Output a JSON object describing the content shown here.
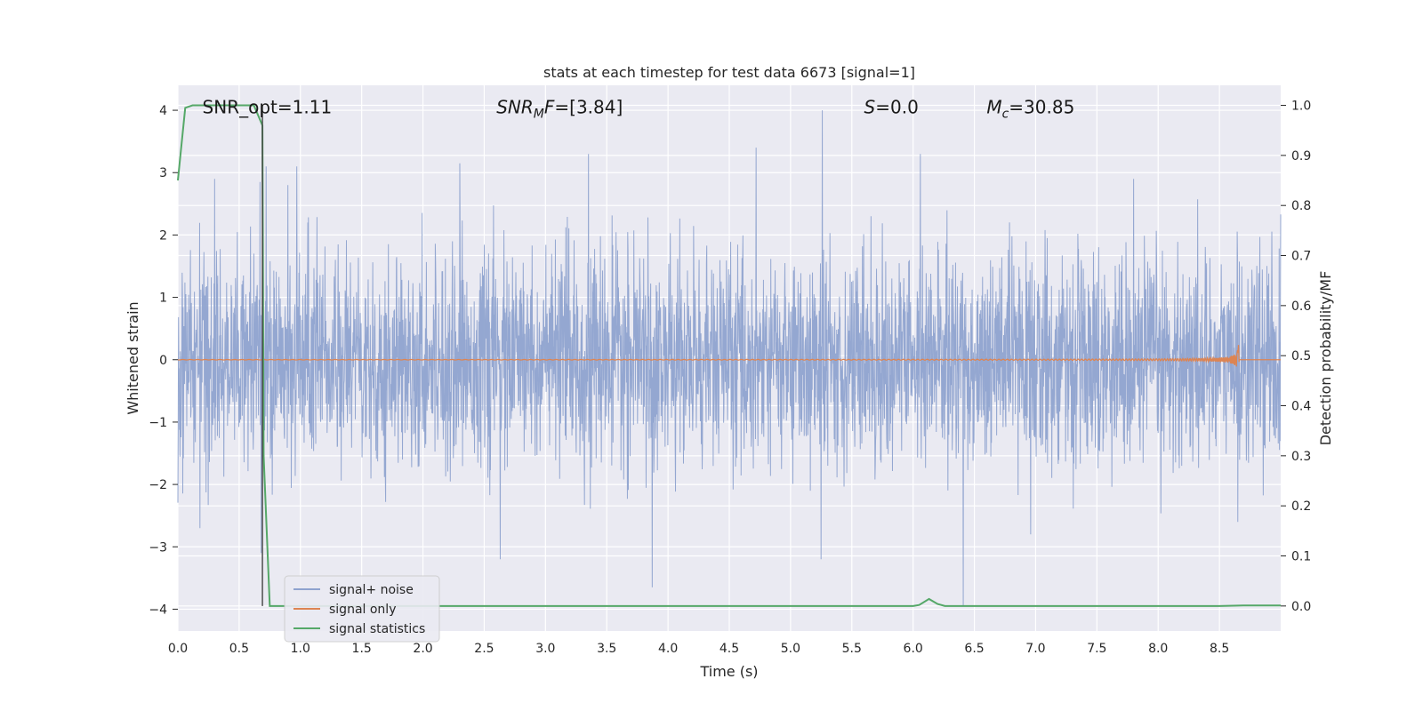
{
  "chart_data": {
    "type": "line",
    "title": "stats at each timestep for test data 6673 [signal=1]",
    "xlabel": "Time (s)",
    "ylabel": "Whitened strain",
    "y2label": "Detection probability/MF",
    "xlim": [
      0,
      9.0
    ],
    "ylim": [
      -4.35,
      4.4
    ],
    "y2lim": [
      -0.05,
      1.04
    ],
    "x_ticks": [
      "0.0",
      "0.5",
      "1.0",
      "1.5",
      "2.0",
      "2.5",
      "3.0",
      "3.5",
      "4.0",
      "4.5",
      "5.0",
      "5.5",
      "6.0",
      "6.5",
      "7.0",
      "7.5",
      "8.0",
      "8.5"
    ],
    "y_ticks": [
      "−4",
      "−3",
      "−2",
      "−1",
      "0",
      "1",
      "2",
      "3",
      "4"
    ],
    "y2_ticks": [
      "0.0",
      "0.1",
      "0.2",
      "0.3",
      "0.4",
      "0.5",
      "0.6",
      "0.7",
      "0.8",
      "0.9",
      "1.0"
    ],
    "annotations": [
      {
        "x": 0.2,
        "y": 4.05,
        "text": "SNR_opt=1.11"
      },
      {
        "x": 2.6,
        "y": 4.05,
        "text": "SNR",
        "sub": "M",
        "suffix": "F=[3.84]",
        "italic": true
      },
      {
        "x": 5.6,
        "y": 4.05,
        "text": "S",
        "suffix": "=0.0",
        "italic": true
      },
      {
        "x": 6.6,
        "y": 4.05,
        "text": "M",
        "sub": "c",
        "suffix": "=30.85",
        "italic": true
      }
    ],
    "vline_x": 0.69,
    "legend_position": "lower-left",
    "grid": true,
    "series": [
      {
        "name": "signal+ noise",
        "axis": "left",
        "color": "#8fa3cf",
        "description_stats": {
          "std": 0.82,
          "max": 4.0,
          "min": -3.9
        },
        "spikes_up": [
          [
            0.3,
            2.9
          ],
          [
            0.67,
            2.85
          ],
          [
            0.72,
            3.1
          ],
          [
            0.97,
            3.1
          ],
          [
            2.3,
            3.15
          ],
          [
            3.35,
            3.3
          ],
          [
            4.72,
            3.4
          ],
          [
            5.26,
            4.0
          ],
          [
            6.06,
            3.3
          ],
          [
            7.8,
            2.9
          ]
        ],
        "spikes_down": [
          [
            0.18,
            -2.7
          ],
          [
            0.68,
            -3.1
          ],
          [
            2.63,
            -3.2
          ],
          [
            3.87,
            -3.65
          ],
          [
            5.25,
            -3.2
          ],
          [
            6.41,
            -3.95
          ],
          [
            8.65,
            -2.6
          ]
        ]
      },
      {
        "name": "signal only",
        "axis": "left",
        "color": "#dd8452",
        "chirp_end": 8.66,
        "chirp_peak_amp": 0.25
      },
      {
        "name": "signal statistics",
        "axis": "right",
        "color": "#55a868",
        "x": [
          0.0,
          0.06,
          0.12,
          0.2,
          0.3,
          0.4,
          0.5,
          0.6,
          0.62,
          0.69,
          0.7,
          0.75,
          1.0,
          2.0,
          3.0,
          4.0,
          5.0,
          5.9,
          6.0,
          6.05,
          6.13,
          6.2,
          6.26,
          6.3,
          7.0,
          8.0,
          8.5,
          8.7,
          9.0
        ],
        "values": [
          0.85,
          0.995,
          1.0,
          1.0,
          1.0,
          1.0,
          1.0,
          1.0,
          1.0,
          0.96,
          0.3,
          0.0,
          0.0,
          0.0,
          0.0,
          0.0,
          0.0,
          0.0,
          0.0,
          0.002,
          0.014,
          0.004,
          0.0,
          0.0,
          0.0,
          0.0,
          0.0,
          0.001,
          0.001
        ]
      }
    ]
  }
}
